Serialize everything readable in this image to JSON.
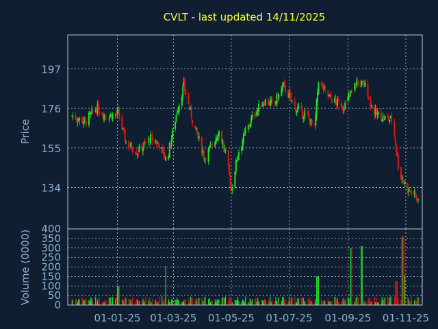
{
  "colors": {
    "background": "#0f1e30",
    "title": "#ffff33",
    "axis_text": "#8fb1d6",
    "frame": "#b8c7d8",
    "grid": "#c7d2de",
    "up": "#22e022",
    "down": "#e01515"
  },
  "chart_data": [
    {
      "type": "candlestick",
      "title": "CVLT - last updated 14/11/2025",
      "ylabel": "Price",
      "ylim": [
        112,
        215
      ],
      "y_ticks": [
        134,
        155,
        176,
        197
      ],
      "x_ticks": [
        "01-01-25",
        "01-03-25",
        "01-05-25",
        "01-07-25",
        "01-09-25",
        "01-11-25"
      ],
      "grid": true,
      "up_color": "#22e022",
      "down_color": "#e01515",
      "series": [
        {
          "name": "",
          "start_date": "2024-11-14",
          "end_date": "2025-11-14",
          "close_path": [
            {
              "date": "2024-11-14",
              "value": 172
            },
            {
              "date": "2024-11-28",
              "value": 169
            },
            {
              "date": "2024-12-10",
              "value": 176
            },
            {
              "date": "2024-12-20",
              "value": 172
            },
            {
              "date": "2025-01-02",
              "value": 173
            },
            {
              "date": "2025-01-10",
              "value": 158
            },
            {
              "date": "2025-01-22",
              "value": 153
            },
            {
              "date": "2025-02-05",
              "value": 160
            },
            {
              "date": "2025-02-14",
              "value": 157
            },
            {
              "date": "2025-02-22",
              "value": 148
            },
            {
              "date": "2025-03-05",
              "value": 175
            },
            {
              "date": "2025-03-12",
              "value": 188
            },
            {
              "date": "2025-03-22",
              "value": 168
            },
            {
              "date": "2025-04-03",
              "value": 150
            },
            {
              "date": "2025-04-10",
              "value": 156
            },
            {
              "date": "2025-04-18",
              "value": 164
            },
            {
              "date": "2025-04-26",
              "value": 150
            },
            {
              "date": "2025-05-01",
              "value": 133
            },
            {
              "date": "2025-05-08",
              "value": 152
            },
            {
              "date": "2025-05-15",
              "value": 162
            },
            {
              "date": "2025-05-25",
              "value": 173
            },
            {
              "date": "2025-06-05",
              "value": 180
            },
            {
              "date": "2025-06-15",
              "value": 178
            },
            {
              "date": "2025-06-25",
              "value": 188
            },
            {
              "date": "2025-07-08",
              "value": 176
            },
            {
              "date": "2025-07-20",
              "value": 172
            },
            {
              "date": "2025-07-28",
              "value": 165
            },
            {
              "date": "2025-08-01",
              "value": 191
            },
            {
              "date": "2025-08-10",
              "value": 183
            },
            {
              "date": "2025-08-20",
              "value": 179
            },
            {
              "date": "2025-08-28",
              "value": 177
            },
            {
              "date": "2025-09-10",
              "value": 190
            },
            {
              "date": "2025-09-20",
              "value": 188
            },
            {
              "date": "2025-09-28",
              "value": 174
            },
            {
              "date": "2025-10-08",
              "value": 171
            },
            {
              "date": "2025-10-18",
              "value": 170
            },
            {
              "date": "2025-10-25",
              "value": 142
            },
            {
              "date": "2025-11-03",
              "value": 133
            },
            {
              "date": "2025-11-14",
              "value": 128
            }
          ]
        }
      ]
    },
    {
      "type": "bar",
      "ylabel": "Volume (0000)",
      "ylim": [
        0,
        400
      ],
      "y_ticks": [
        0,
        50,
        100,
        150,
        200,
        250,
        300,
        350,
        400
      ],
      "grid": true,
      "series": [
        {
          "name": "",
          "typical_value": 35,
          "spikes": [
            {
              "date": "2025-01-02",
              "value": 100
            },
            {
              "date": "2025-02-22",
              "value": 205
            },
            {
              "date": "2025-07-31",
              "value": 150
            },
            {
              "date": "2025-09-05",
              "value": 300
            },
            {
              "date": "2025-09-15",
              "value": 310
            },
            {
              "date": "2025-10-22",
              "value": 125
            },
            {
              "date": "2025-10-29",
              "value": 360
            },
            {
              "date": "2025-11-01",
              "value": 155
            }
          ]
        }
      ]
    }
  ]
}
